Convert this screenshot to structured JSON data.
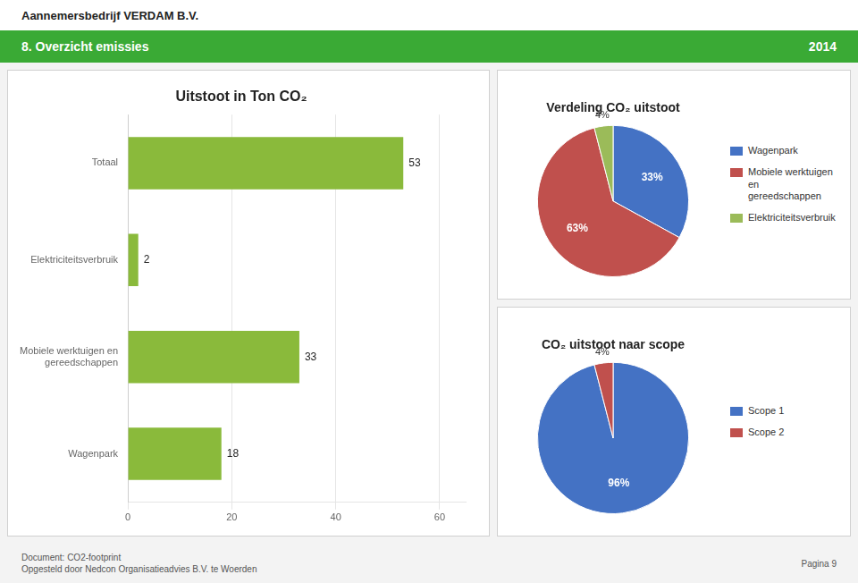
{
  "title": "8. Overzicht emissies",
  "subtitle": "2014",
  "annotations": [
    "Aannemersbedrijf VERDAM B.V.",
    "Document: CO2-footprint\nOpgesteld door Nedcon Organisatieadvies B.V. te Woerden",
    "Pagina 9"
  ],
  "chart_data": [
    {
      "type": "bar",
      "title": "Uitstoot in Ton CO₂",
      "orientation": "horizontal",
      "categories": [
        "Totaal",
        "Elektriciteitsverbruik",
        "Mobiele werktuigen en\ngereedschappen",
        "Wagenpark"
      ],
      "values": [
        53,
        2,
        33,
        18
      ],
      "color": "#8aba3b",
      "xlim": [
        0,
        65
      ],
      "xticks": [
        0,
        20,
        40,
        60
      ],
      "grid": true,
      "data_labels": true
    },
    {
      "type": "pie",
      "title": "Verdeling CO₂ uitstoot",
      "categories": [
        "Wagenpark",
        "Mobiele werktuigen en\ngereedschappen",
        "Elektriciteitsverbruik"
      ],
      "values": [
        33,
        63,
        4
      ],
      "value_labels": [
        "33%",
        "63%",
        "4%"
      ],
      "colors": [
        "#4472C4",
        "#C0504D",
        "#9BBB59"
      ],
      "data_labels": true,
      "legend": "right"
    },
    {
      "type": "pie",
      "title": "CO₂ uitstoot naar scope",
      "categories": [
        "Scope 1",
        "Scope 2"
      ],
      "values": [
        96,
        4
      ],
      "value_labels": [
        "96%",
        "4%"
      ],
      "colors": [
        "#4472C4",
        "#C0504D"
      ],
      "data_labels": true,
      "legend": "right"
    }
  ]
}
